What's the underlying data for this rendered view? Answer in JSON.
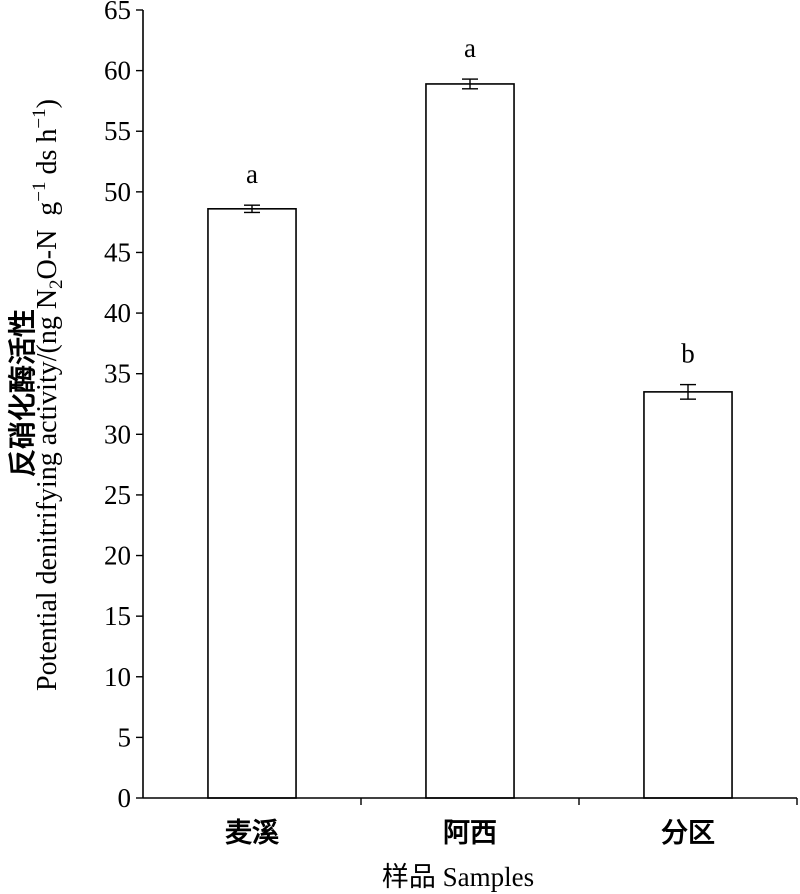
{
  "chart_data": {
    "type": "bar",
    "categories": [
      "麦溪",
      "阿西",
      "分区"
    ],
    "values": [
      48.6,
      58.9,
      33.5
    ],
    "errors": [
      0.3,
      0.4,
      0.6
    ],
    "significance_letters": [
      "a",
      "a",
      "b"
    ],
    "xlabel": "样品 Samples",
    "ylabel_zh": "反硝化酶活性",
    "ylabel_en_parts": [
      "Potential denitrifying activity/(ng N",
      "2",
      "O-N  g",
      "−1",
      " ds h",
      "−1",
      ")"
    ],
    "ylim": [
      0,
      65
    ],
    "yticks": [
      0,
      5,
      10,
      15,
      20,
      25,
      30,
      35,
      40,
      45,
      50,
      55,
      60,
      65
    ],
    "grid": false,
    "legend": "none",
    "colors": {
      "bar_fill": "#ffffff",
      "bar_edge": "#000000",
      "axis": "#000000"
    }
  }
}
